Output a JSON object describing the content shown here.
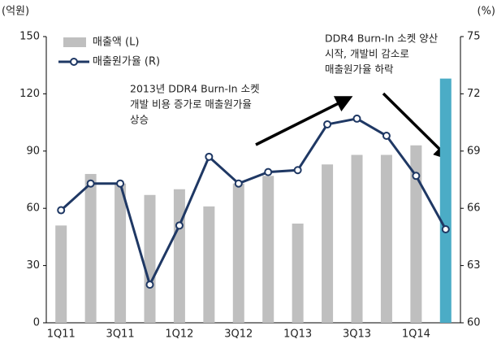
{
  "chart_data": {
    "type": "bar_line",
    "y_label": "(억원)",
    "y2_label": "(%)",
    "categories": [
      "1Q11",
      null,
      "3Q11",
      null,
      "1Q12",
      null,
      "3Q12",
      null,
      "1Q13",
      null,
      "3Q13",
      null,
      "1Q14",
      null
    ],
    "series": [
      {
        "name": "매출액 (L)",
        "type": "bar",
        "color": "#bfbfbf",
        "colors": [
          "#bfbfbf",
          "#bfbfbf",
          "#bfbfbf",
          "#bfbfbf",
          "#bfbfbf",
          "#bfbfbf",
          "#bfbfbf",
          "#bfbfbf",
          "#bfbfbf",
          "#bfbfbf",
          "#bfbfbf",
          "#bfbfbf",
          "#bfbfbf",
          "#4bacc6"
        ],
        "values": [
          51,
          78,
          73,
          67,
          70,
          61,
          73,
          77,
          52,
          83,
          88,
          88,
          93,
          128
        ]
      },
      {
        "name": "매출원가율 (R)",
        "type": "line",
        "axis": "y2",
        "color": "#1f3864",
        "values": [
          65.9,
          67.3,
          67.3,
          62.0,
          65.1,
          68.7,
          67.3,
          67.9,
          68.0,
          70.4,
          70.7,
          69.8,
          67.7,
          64.9
        ]
      }
    ],
    "ylim": [
      0,
      150
    ],
    "yticks": [
      0,
      30,
      60,
      90,
      120,
      150
    ],
    "y2lim": [
      60,
      75
    ],
    "y2ticks": [
      60,
      63,
      66,
      69,
      72,
      75
    ],
    "annotations": [
      {
        "lines": [
          "2013년 DDR4 Burn-In 소켓",
          "개발 비용 증가로 매출원가율",
          "상승"
        ]
      },
      {
        "lines": [
          "DDR4 Burn-In 소켓 양산",
          "시작, 개발비 감소로",
          "매출원가율 하락"
        ]
      }
    ],
    "legend": "upper left"
  }
}
